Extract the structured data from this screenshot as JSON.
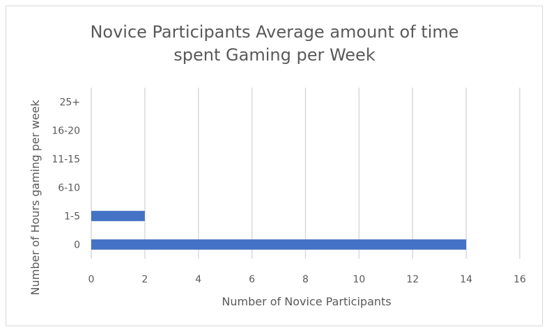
{
  "chart_data": {
    "type": "bar",
    "orientation": "horizontal",
    "title_lines": [
      "Novice Participants Average amount of time",
      "spent Gaming per Week"
    ],
    "xlabel": "Number of Novice Participants",
    "ylabel": "Number of Hours gaming per week",
    "categories": [
      "0",
      "1-5",
      "6-10",
      "11-15",
      "16-20",
      "25+"
    ],
    "values": [
      14,
      2,
      0,
      0,
      0,
      0
    ],
    "xlim": [
      0,
      16
    ],
    "xticks": [
      0,
      2,
      4,
      6,
      8,
      10,
      12,
      14,
      16
    ],
    "grid": "vertical",
    "legend": "none",
    "bar_color": "#4472c4",
    "grid_color": "#d9d9d9"
  }
}
